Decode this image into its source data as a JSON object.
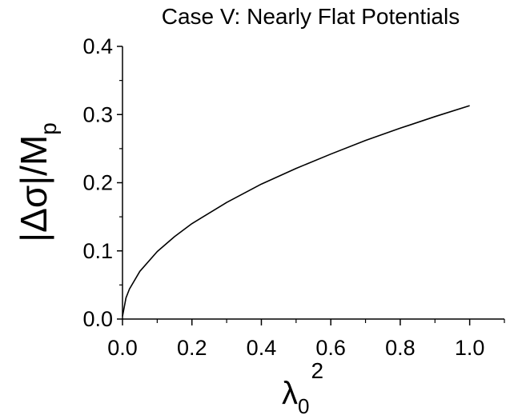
{
  "chart_data": {
    "type": "line",
    "title": "Case V:    Nearly Flat Potentials",
    "ylabel": {
      "main": "|Δσ|/M",
      "subscript": "p"
    },
    "xlabel": {
      "main": "λ",
      "subscript": "0",
      "superscript": "2"
    },
    "xlim": [
      0.0,
      1.1
    ],
    "ylim": [
      0.0,
      0.4
    ],
    "xticks": [
      "0.0",
      "0.2",
      "0.4",
      "0.6",
      "0.8",
      "1.0"
    ],
    "yticks": [
      "0.0",
      "0.1",
      "0.2",
      "0.3",
      "0.4"
    ],
    "grid": false,
    "series": [
      {
        "x": [
          0.0,
          0.01,
          0.02,
          0.05,
          0.1,
          0.15,
          0.2,
          0.3,
          0.4,
          0.5,
          0.6,
          0.7,
          0.8,
          0.9,
          1.0
        ],
        "y": [
          0.004,
          0.031,
          0.044,
          0.07,
          0.099,
          0.121,
          0.14,
          0.171,
          0.198,
          0.221,
          0.242,
          0.262,
          0.28,
          0.297,
          0.313
        ],
        "color": "#000000"
      }
    ]
  }
}
